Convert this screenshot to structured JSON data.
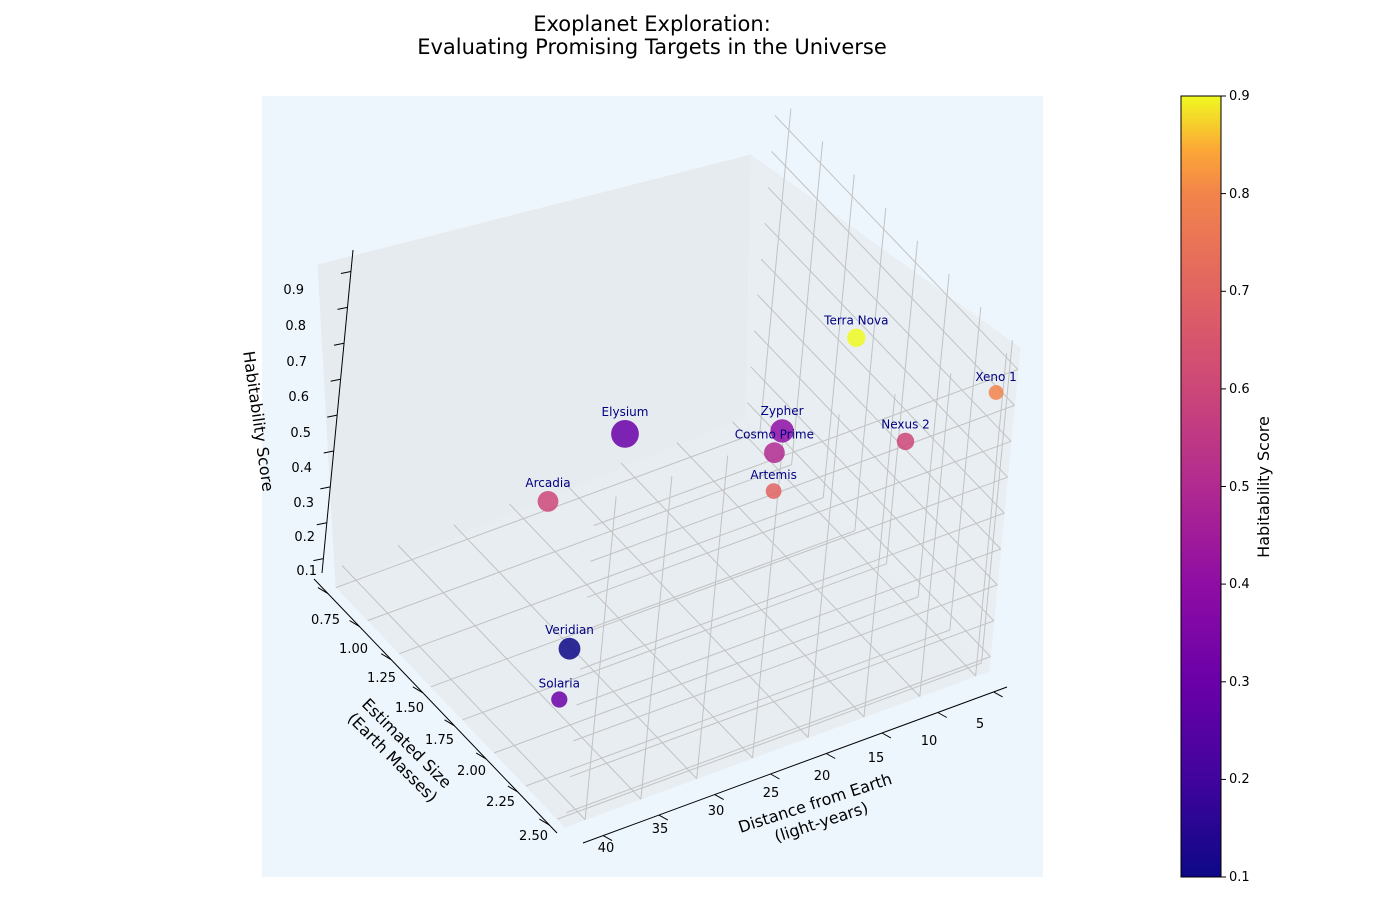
{
  "chart_data": {
    "type": "scatter3d",
    "title_lines": [
      "Exoplanet Exploration:",
      "Evaluating Promising Targets in the Universe"
    ],
    "xlabel_lines": [
      "Distance from Earth",
      "(light-years)"
    ],
    "ylabel_lines": [
      "Estimated Size",
      "(Earth Masses)"
    ],
    "zlabel": "Habitability Score",
    "colorbar_label": "Habitability Score",
    "x_ticks": [
      "5",
      "10",
      "15",
      "20",
      "25",
      "30",
      "35",
      "40"
    ],
    "y_ticks": [
      "0.75",
      "1.00",
      "1.25",
      "1.50",
      "1.75",
      "2.00",
      "2.25",
      "2.50"
    ],
    "z_ticks": [
      "0.1",
      "0.2",
      "0.3",
      "0.4",
      "0.5",
      "0.6",
      "0.7",
      "0.8",
      "0.9"
    ],
    "colorbar_ticks": [
      "0.1",
      "0.2",
      "0.3",
      "0.4",
      "0.5",
      "0.6",
      "0.7",
      "0.8",
      "0.9"
    ],
    "colorscale": "plasma",
    "colorbar_range": [
      0.1,
      0.9
    ],
    "points": [
      {
        "name": "Xeno 1",
        "distance": 4.2,
        "size": 0.8,
        "habitability": 0.8
      },
      {
        "name": "Terra Nova",
        "distance": 12.5,
        "size": 1.2,
        "habitability": 0.9
      },
      {
        "name": "Nexus 2",
        "distance": 8.3,
        "size": 1.1,
        "habitability": 0.6
      },
      {
        "name": "Artemis",
        "distance": 22.7,
        "size": 0.9,
        "habitability": 0.7
      },
      {
        "name": "Arcadia",
        "distance": 35.8,
        "size": 1.5,
        "habitability": 0.6
      },
      {
        "name": "Solaria",
        "distance": 40.1,
        "size": 0.95,
        "habitability": 0.3
      },
      {
        "name": "Cosmo Prime",
        "distance": 15.2,
        "size": 1.5,
        "habitability": 0.5
      },
      {
        "name": "Zypher",
        "distance": 10.8,
        "size": 1.8,
        "habitability": 0.4
      },
      {
        "name": "Veridian",
        "distance": 31.2,
        "size": 1.6,
        "habitability": 0.1
      },
      {
        "name": "Elysium",
        "distance": 18.9,
        "size": 2.3,
        "habitability": 0.3
      }
    ],
    "pane_color": "#eef6fd",
    "grid": true
  }
}
